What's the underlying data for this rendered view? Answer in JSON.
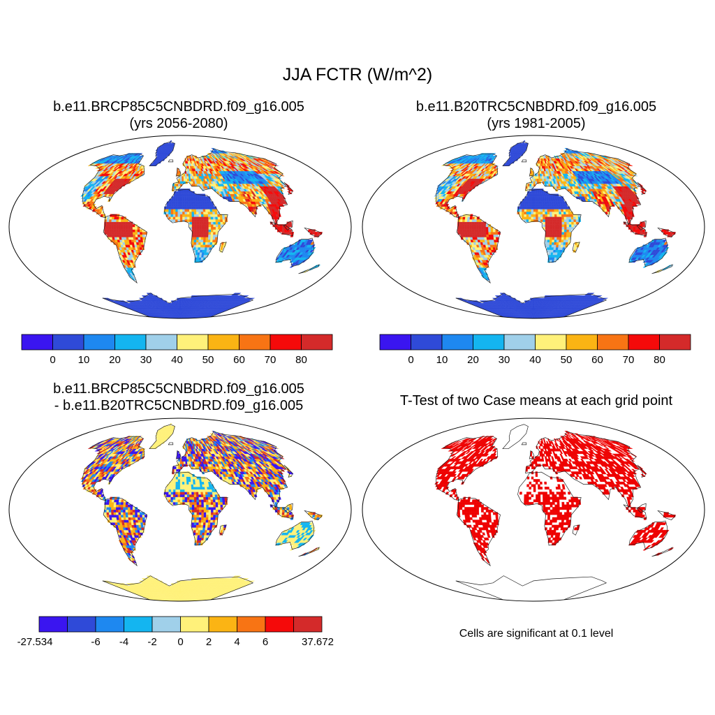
{
  "title": "JJA FCTR (W/m^2)",
  "panels": [
    {
      "title1": "b.e11.BRCP85C5CNBDRD.f09_g16.005",
      "title2": "(yrs 2056-2080)"
    },
    {
      "title1": "b.e11.B20TRC5CNBDRD.f09_g16.005",
      "title2": "(yrs 1981-2005)"
    },
    {
      "title1": "b.e11.BRCP85C5CNBDRD.f09_g16.005",
      "title2": "- b.e11.B20TRC5CNBDRD.f09_g16.005"
    },
    {
      "title1": "T-Test of two Case means at each grid point"
    }
  ],
  "colorbar_abs": {
    "colors": [
      "#3a15f0",
      "#2f4ad8",
      "#1e88f0",
      "#14b5f0",
      "#a0d0ea",
      "#fff17a",
      "#fbb414",
      "#f87414",
      "#f50a0a",
      "#d42a2a"
    ],
    "labels": [
      "0",
      "10",
      "20",
      "30",
      "40",
      "50",
      "60",
      "70",
      "80"
    ]
  },
  "colorbar_diff": {
    "colors": [
      "#3a15f0",
      "#2f4ad8",
      "#1e88f0",
      "#14b5f0",
      "#a0d0ea",
      "#fff17a",
      "#fbb414",
      "#f87414",
      "#f50a0a",
      "#d42a2a"
    ],
    "labels": [
      "-27.534",
      "-6",
      "-4",
      "-2",
      "0",
      "2",
      "4",
      "6",
      "37.672"
    ]
  },
  "significance_note": "Cells are significant at 0.1 level",
  "significance_color": "#ee0000"
}
